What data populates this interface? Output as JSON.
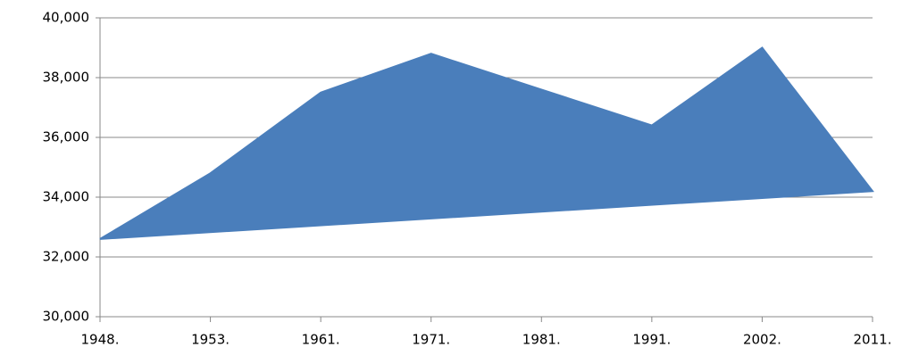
{
  "chart_data": {
    "type": "area",
    "categories": [
      "1948.",
      "1953.",
      "1961.",
      "1971.",
      "1981.",
      "1991.",
      "2002.",
      "2011."
    ],
    "values": [
      32600,
      34800,
      37500,
      38800,
      37600,
      36400,
      39000,
      34200
    ],
    "color": "#4a7ebb",
    "ylim": [
      30000,
      40000
    ],
    "yticks": [
      {
        "value": 30000,
        "label": "30,000"
      },
      {
        "value": 32000,
        "label": "32,000"
      },
      {
        "value": 34000,
        "label": "34,000"
      },
      {
        "value": 36000,
        "label": "36,000"
      },
      {
        "value": 38000,
        "label": "38,000"
      },
      {
        "value": 40000,
        "label": "40,000"
      }
    ],
    "grid": true
  }
}
